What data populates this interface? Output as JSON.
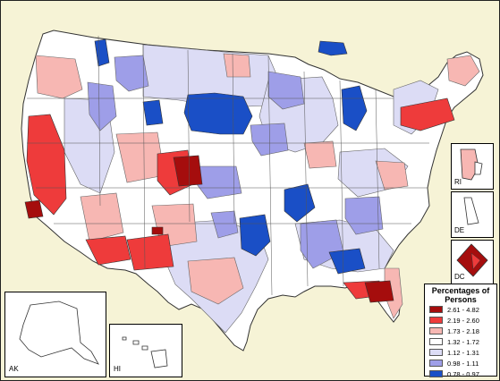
{
  "map": {
    "legend": {
      "title": "Percentages of Persons",
      "classes": [
        {
          "label": "2.61 - 4.82",
          "color": "#a50d0d"
        },
        {
          "label": "2.19 - 2.60",
          "color": "#ee3b3b"
        },
        {
          "label": "1.73 - 2.18",
          "color": "#f7b7b3"
        },
        {
          "label": "1.32 - 1.72",
          "color": "#ffffff"
        },
        {
          "label": "1.12 - 1.31",
          "color": "#dcdcf5"
        },
        {
          "label": "0.98 - 1.11",
          "color": "#9e9ee8"
        },
        {
          "label": "0.78 - 0.97",
          "color": "#1a4fc6"
        }
      ]
    },
    "insets": {
      "rhode_island": "RI",
      "delaware": "DE",
      "district_of_columbia": "DC",
      "alaska": "AK",
      "hawaii": "HI"
    },
    "colors": {
      "background": "#f6f3d6",
      "border": "#333333"
    }
  }
}
